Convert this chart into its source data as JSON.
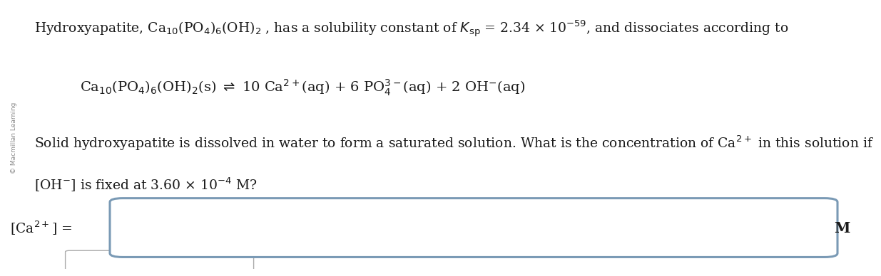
{
  "bg_color": "#ffffff",
  "text_color": "#1a1a1a",
  "box_edge_color": "#7a9ab5",
  "line1": "Hydroxyapatite, Ca$_{10}$(PO$_4$)$_6$(OH)$_2$ , has a solubility constant of $K_{\\mathrm{sp}}$ = 2.34 × 10$^{-59}$, and dissociates according to",
  "line2": "Ca$_{10}$(PO$_4$)$_6$(OH)$_2$(s) $\\rightleftharpoons$ 10 Ca$^{2+}$(aq) + 6 PO$_4^{3-}$(aq) + 2 OH$^{-}$(aq)",
  "line3": "Solid hydroxyapatite is dissolved in water to form a saturated solution. What is the concentration of Ca$^{2+}$ in this solution if",
  "line4": "[OH$^{-}$] is fixed at 3.60 × 10$^{-4}$ M?",
  "label": "[Ca$^{2+}$] =",
  "unit": "M",
  "font_size_main": 13.5,
  "font_size_eq": 14,
  "font_size_label": 13.5,
  "watermark": "© Macmillan Learning",
  "watermark_color": "#888888"
}
